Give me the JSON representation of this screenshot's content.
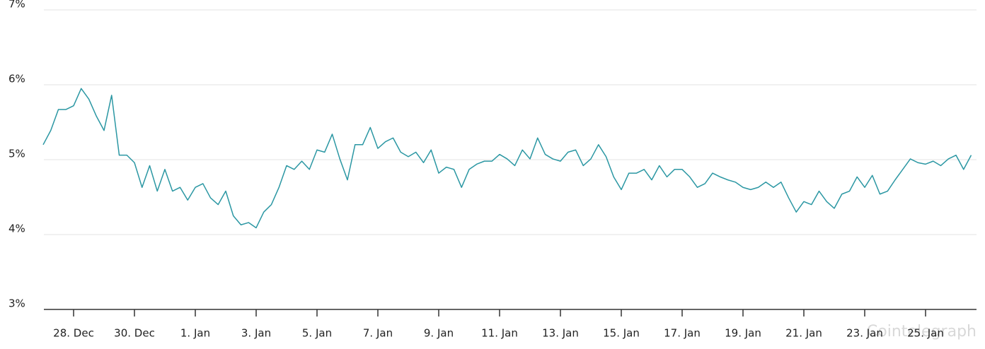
{
  "chart_data": {
    "type": "line",
    "watermark": "Cointelegraph",
    "categories": [
      null,
      null,
      null,
      null,
      "28. Dec",
      null,
      null,
      null,
      null,
      null,
      null,
      null,
      "30. Dec",
      null,
      null,
      null,
      null,
      null,
      null,
      null,
      "1. Jan",
      null,
      null,
      null,
      null,
      null,
      null,
      null,
      "3. Jan",
      null,
      null,
      null,
      null,
      null,
      null,
      null,
      "5. Jan",
      null,
      null,
      null,
      null,
      null,
      null,
      null,
      "7. Jan",
      null,
      null,
      null,
      null,
      null,
      null,
      null,
      "9. Jan",
      null,
      null,
      null,
      null,
      null,
      null,
      null,
      "11. Jan",
      null,
      null,
      null,
      null,
      null,
      null,
      null,
      "13. Jan",
      null,
      null,
      null,
      null,
      null,
      null,
      null,
      "15. Jan",
      null,
      null,
      null,
      null,
      null,
      null,
      null,
      "17. Jan",
      null,
      null,
      null,
      null,
      null,
      null,
      null,
      "19. Jan",
      null,
      null,
      null,
      null,
      null,
      null,
      null,
      "21. Jan",
      null,
      null,
      null,
      null,
      null,
      null,
      null,
      "23. Jan",
      null,
      null,
      null,
      null,
      null,
      null,
      null,
      "25. Jan",
      null,
      null,
      null,
      null,
      null,
      null
    ],
    "series": [
      {
        "color": "#2b97a3",
        "values": [
          5.2,
          5.39,
          5.67,
          5.67,
          5.72,
          5.95,
          5.81,
          5.58,
          5.39,
          5.86,
          5.06,
          5.06,
          4.96,
          4.63,
          4.92,
          4.58,
          4.87,
          4.58,
          4.63,
          4.46,
          4.63,
          4.68,
          4.49,
          4.4,
          4.58,
          4.25,
          4.13,
          4.16,
          4.09,
          4.3,
          4.4,
          4.63,
          4.92,
          4.87,
          4.98,
          4.87,
          5.13,
          5.1,
          5.34,
          5.01,
          4.73,
          5.2,
          5.2,
          5.43,
          5.15,
          5.24,
          5.29,
          5.1,
          5.04,
          5.1,
          4.96,
          5.13,
          4.82,
          4.9,
          4.87,
          4.63,
          4.87,
          4.94,
          4.98,
          4.98,
          5.07,
          5.01,
          4.92,
          5.13,
          5.01,
          5.29,
          5.07,
          5.01,
          4.98,
          5.1,
          5.13,
          4.92,
          5.01,
          5.2,
          5.04,
          4.77,
          4.6,
          4.82,
          4.82,
          4.87,
          4.73,
          4.92,
          4.77,
          4.87,
          4.87,
          4.77,
          4.63,
          4.68,
          4.82,
          4.77,
          4.73,
          4.7,
          4.63,
          4.6,
          4.63,
          4.7,
          4.63,
          4.7,
          4.49,
          4.3,
          4.44,
          4.4,
          4.58,
          4.44,
          4.35,
          4.54,
          4.58,
          4.77,
          4.63,
          4.79,
          4.54,
          4.58,
          4.73,
          4.87,
          5.01,
          4.96,
          4.94,
          4.98,
          4.92,
          5.01,
          5.06,
          4.87,
          5.06
        ]
      }
    ],
    "ylim": [
      3,
      7
    ],
    "yticks": [
      {
        "value": 3,
        "label": "3%"
      },
      {
        "value": 4,
        "label": "4%"
      },
      {
        "value": 5,
        "label": "5%"
      },
      {
        "value": 6,
        "label": "6%"
      },
      {
        "value": 7,
        "label": "7%"
      }
    ],
    "grid": true
  }
}
